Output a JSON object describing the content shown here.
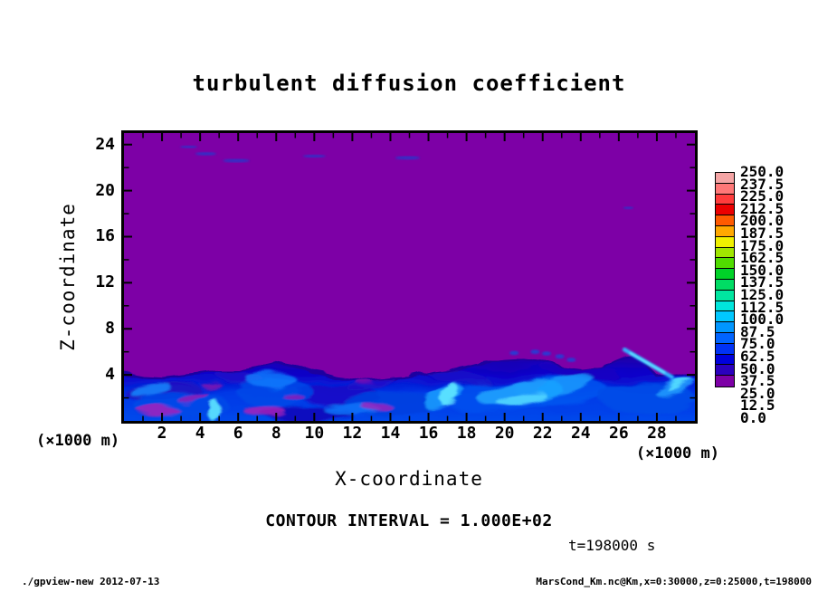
{
  "title": "turbulent diffusion coefficient",
  "axes": {
    "x": {
      "label": "X-coordinate",
      "unit_note_left": "(×1000 m)",
      "unit_note_right": "(×1000 m)",
      "min": 0,
      "max": 30,
      "major_ticks": [
        2,
        4,
        6,
        8,
        10,
        12,
        14,
        16,
        18,
        20,
        22,
        24,
        26,
        28
      ],
      "minor_ticks": [
        1,
        3,
        5,
        7,
        9,
        11,
        13,
        15,
        17,
        19,
        21,
        23,
        25,
        27,
        29
      ]
    },
    "y": {
      "label": "Z-coordinate",
      "min": 0,
      "max": 25,
      "major_ticks": [
        4,
        8,
        12,
        16,
        20,
        24
      ],
      "minor_ticks": [
        2,
        6,
        10,
        14,
        18,
        22
      ]
    }
  },
  "annotations": {
    "contour_interval": "CONTOUR INTERVAL = 1.000E+02",
    "time": "t=198000 s"
  },
  "footer": {
    "left": "./gpview-new  2012-07-13",
    "right": "MarsCond_Km.nc@Km,x=0:30000,z=0:25000,t=198000"
  },
  "chart_data": {
    "type": "heatmap",
    "title": "turbulent diffusion coefficient",
    "xlabel": "X-coordinate (×1000 m)",
    "ylabel": "Z-coordinate (×1000 m)",
    "xlim": [
      0,
      30
    ],
    "ylim": [
      0,
      25
    ],
    "grid": false,
    "legend_position": "right-colorbar",
    "colorbar": {
      "levels": [
        0.0,
        12.5,
        25.0,
        37.5,
        50.0,
        62.5,
        75.0,
        87.5,
        100.0,
        112.5,
        125.0,
        137.5,
        150.0,
        162.5,
        175.0,
        187.5,
        200.0,
        212.5,
        225.0,
        237.5,
        250.0
      ],
      "colors_bottom_to_top": [
        "#7D00A6",
        "#2B00BE",
        "#0000DC",
        "#0032F5",
        "#0064FF",
        "#0096FF",
        "#00C8FF",
        "#00E6DC",
        "#00E6A0",
        "#00DC64",
        "#00D228",
        "#50DC00",
        "#A0E600",
        "#F0F000",
        "#FFA800",
        "#FF5A00",
        "#EB0000",
        "#FF3C3C",
        "#FF7878",
        "#F5A5A5"
      ]
    },
    "field": {
      "description": "Turbulent diffusion coefficient: value 0-12.5 (purple) everywhere above a turbulent boundary layer; boundary layer below z≈4-5.5 km holds values ~12.5-100 (blues/cyans) with small magenta pockets and cyan filaments; a few thin blue wisps aloft.",
      "background_color": "#7D00A6",
      "interface_z": [
        4.1,
        3.8,
        3.7,
        3.9,
        4.1,
        4.3,
        4.3,
        4.6,
        5.0,
        4.7,
        4.2,
        3.9,
        3.7,
        3.5,
        3.6,
        3.7,
        4.1,
        4.3,
        4.6,
        5.0,
        5.2,
        5.3,
        5.1,
        4.7,
        4.5,
        4.7,
        5.4,
        5.6,
        3.9,
        3.9,
        4.2
      ],
      "layer_gradient": [
        "#2200A8",
        "#0C00C8",
        "#0038E6",
        "#0055F0"
      ],
      "interface_stroke": "#1E00A0",
      "blobs": [
        {
          "x": 2.0,
          "z": 2.6,
          "w": 4.0,
          "h": 1.4,
          "angle": -5,
          "color": "#1E10C0",
          "opacity": 0.85
        },
        {
          "x": 6.3,
          "z": 3.6,
          "w": 3.0,
          "h": 1.1,
          "angle": 10,
          "color": "#2010C8",
          "opacity": 0.8
        },
        {
          "x": 11.2,
          "z": 2.2,
          "w": 4.5,
          "h": 1.8,
          "angle": 0,
          "color": "#1A08C0",
          "opacity": 0.75
        },
        {
          "x": 13.0,
          "z": 3.3,
          "w": 2.6,
          "h": 0.9,
          "angle": -12,
          "color": "#2010C8",
          "opacity": 0.8
        },
        {
          "x": 17.5,
          "z": 3.9,
          "w": 3.5,
          "h": 1.0,
          "angle": 8,
          "color": "#1E10C8",
          "opacity": 0.7
        },
        {
          "x": 24.0,
          "z": 4.3,
          "w": 4.0,
          "h": 1.3,
          "angle": 5,
          "color": "#1A08C0",
          "opacity": 0.7
        },
        {
          "x": 9.7,
          "z": 0.6,
          "w": 5.0,
          "h": 1.2,
          "angle": 0,
          "color": "#1408B4",
          "opacity": 0.8
        },
        {
          "x": 3.0,
          "z": 1.4,
          "w": 5.0,
          "h": 2.2,
          "angle": 0,
          "color": "#0048E8",
          "opacity": 0.9
        },
        {
          "x": 8.0,
          "z": 2.4,
          "w": 4.0,
          "h": 2.4,
          "angle": 0,
          "color": "#0048E8",
          "opacity": 0.85
        },
        {
          "x": 14.0,
          "z": 1.4,
          "w": 5.0,
          "h": 2.2,
          "angle": 0,
          "color": "#0040E0",
          "opacity": 0.9
        },
        {
          "x": 19.5,
          "z": 2.0,
          "w": 6.0,
          "h": 2.6,
          "angle": 0,
          "color": "#0050EE",
          "opacity": 0.9
        },
        {
          "x": 23.0,
          "z": 2.6,
          "w": 5.0,
          "h": 2.4,
          "angle": 0,
          "color": "#0055F0",
          "opacity": 0.85
        },
        {
          "x": 27.5,
          "z": 2.0,
          "w": 5.0,
          "h": 2.6,
          "angle": 0,
          "color": "#004CE8",
          "opacity": 0.9
        },
        {
          "x": 1.4,
          "z": 2.7,
          "w": 2.2,
          "h": 0.9,
          "angle": -10,
          "color": "#1288FF",
          "opacity": 0.85
        },
        {
          "x": 7.8,
          "z": 3.5,
          "w": 2.6,
          "h": 1.4,
          "angle": 0,
          "color": "#1080FF",
          "opacity": 0.8
        },
        {
          "x": 12.0,
          "z": 1.0,
          "w": 3.0,
          "h": 1.0,
          "angle": 0,
          "color": "#0E78FA",
          "opacity": 0.8
        },
        {
          "x": 16.8,
          "z": 2.1,
          "w": 2.2,
          "h": 1.6,
          "angle": -30,
          "color": "#18A0FF",
          "opacity": 0.85
        },
        {
          "x": 20.8,
          "z": 2.4,
          "w": 4.5,
          "h": 2.0,
          "angle": -8,
          "color": "#20A8FF",
          "opacity": 0.85
        },
        {
          "x": 23.2,
          "z": 3.1,
          "w": 3.0,
          "h": 1.4,
          "angle": -15,
          "color": "#18A0FF",
          "opacity": 0.8
        },
        {
          "x": 29.0,
          "z": 2.9,
          "w": 2.2,
          "h": 1.1,
          "angle": -20,
          "color": "#1E9EFF",
          "opacity": 0.85
        },
        {
          "x": 4.72,
          "z": 0.9,
          "w": 0.6,
          "h": 1.9,
          "angle": 3,
          "color": "#58E0FF",
          "opacity": 0.95
        },
        {
          "x": 17.1,
          "z": 2.3,
          "w": 0.7,
          "h": 2.2,
          "angle": 25,
          "color": "#60E8FF",
          "opacity": 0.9
        },
        {
          "x": 20.9,
          "z": 1.9,
          "w": 2.6,
          "h": 0.9,
          "angle": -10,
          "color": "#55D8FF",
          "opacity": 0.85
        },
        {
          "x": 29.2,
          "z": 3.2,
          "w": 1.4,
          "h": 0.45,
          "angle": -25,
          "color": "#58E0FF",
          "opacity": 0.9
        },
        {
          "x": 1.8,
          "z": 0.9,
          "w": 2.2,
          "h": 0.8,
          "angle": 0,
          "color": "#B020B8",
          "opacity": 0.8
        },
        {
          "x": 3.6,
          "z": 2.1,
          "w": 1.6,
          "h": 0.6,
          "angle": -15,
          "color": "#A818B0",
          "opacity": 0.75
        },
        {
          "x": 7.4,
          "z": 0.8,
          "w": 2.2,
          "h": 0.9,
          "angle": 0,
          "color": "#B020B8",
          "opacity": 0.8
        },
        {
          "x": 8.9,
          "z": 2.1,
          "w": 1.3,
          "h": 0.5,
          "angle": 10,
          "color": "#A818B0",
          "opacity": 0.7
        },
        {
          "x": 13.3,
          "z": 1.2,
          "w": 1.6,
          "h": 0.7,
          "angle": 0,
          "color": "#B020B8",
          "opacity": 0.75
        },
        {
          "x": 4.6,
          "z": 3.1,
          "w": 1.1,
          "h": 0.5,
          "angle": 0,
          "color": "#9C10A8",
          "opacity": 0.7
        },
        {
          "x": 12.6,
          "z": 3.5,
          "w": 0.9,
          "h": 0.45,
          "angle": 0,
          "color": "#9C10A8",
          "opacity": 0.65
        }
      ],
      "streaks": [
        {
          "x1": 26.3,
          "z1": 6.2,
          "x2": 28.8,
          "z2": 3.8,
          "color": "#30B0FF",
          "width": 4.5
        },
        {
          "x1": 26.6,
          "z1": 5.9,
          "x2": 28.4,
          "z2": 4.2,
          "color": "#70E8FF",
          "width": 2
        }
      ],
      "dots": [
        {
          "x": 20.5,
          "z": 5.9
        },
        {
          "x": 21.6,
          "z": 6.0
        },
        {
          "x": 22.2,
          "z": 5.85
        },
        {
          "x": 22.9,
          "z": 5.6
        },
        {
          "x": 23.5,
          "z": 5.3
        }
      ],
      "wisps": [
        {
          "x": 3.4,
          "z": 23.8,
          "w": 0.9,
          "h": 0.22
        },
        {
          "x": 4.3,
          "z": 23.2,
          "w": 1.1,
          "h": 0.28
        },
        {
          "x": 5.9,
          "z": 22.6,
          "w": 1.4,
          "h": 0.3
        },
        {
          "x": 10.0,
          "z": 23.0,
          "w": 1.2,
          "h": 0.25
        },
        {
          "x": 14.9,
          "z": 22.85,
          "w": 1.3,
          "h": 0.3
        },
        {
          "x": 26.5,
          "z": 18.5,
          "w": 0.55,
          "h": 0.22
        }
      ]
    }
  }
}
